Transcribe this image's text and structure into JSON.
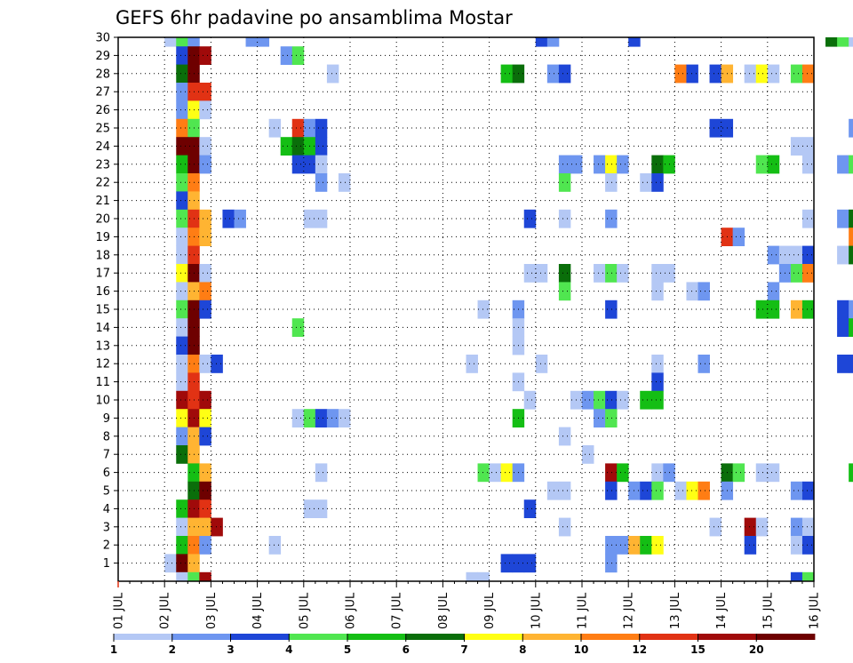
{
  "chart_data": {
    "type": "heatmap",
    "title": "GEFS 6hr padavine po ansamblima Mostar",
    "xlabel": "",
    "ylabel": "",
    "grid": true,
    "legend_position": "bottom",
    "x_tick_labels": [
      "01 JUL",
      "02 JUL",
      "03 JUL",
      "04 JUL",
      "05 JUL",
      "06 JUL",
      "07 JUL",
      "08 JUL",
      "09 JUL",
      "10 JUL",
      "11 JUL",
      "12 JUL",
      "13 JUL",
      "14 JUL",
      "15 JUL",
      "16 JUL"
    ],
    "y_tick_labels": [
      "1",
      "2",
      "3",
      "4",
      "5",
      "6",
      "7",
      "8",
      "9",
      "10",
      "11",
      "12",
      "13",
      "14",
      "15",
      "16",
      "17",
      "18",
      "19",
      "20",
      "21",
      "22",
      "23",
      "24",
      "25",
      "26",
      "27",
      "28",
      "29",
      "30"
    ],
    "time_step_hours": 6,
    "legend": {
      "labels": [
        "1",
        "2",
        "3",
        "4",
        "5",
        "6",
        "7",
        "8",
        "10",
        "12",
        "15",
        "20"
      ],
      "colors": [
        "#b4c8f5",
        "#6e96f0",
        "#1e46d7",
        "#50e650",
        "#14be14",
        "#0a6e0a",
        "#ffff14",
        "#ffb432",
        "#ff7d14",
        "#e13214",
        "#a00a0a",
        "#6e0000"
      ]
    },
    "cells": [
      [
        4,
        30,
        1
      ],
      [
        5,
        30,
        4
      ],
      [
        6,
        30,
        2
      ],
      [
        11,
        30,
        2
      ],
      [
        12,
        30,
        2
      ],
      [
        36,
        30,
        3
      ],
      [
        37,
        30,
        2
      ],
      [
        44,
        30,
        3
      ],
      [
        61,
        30,
        6
      ],
      [
        62,
        30,
        4
      ],
      [
        63,
        30,
        1
      ],
      [
        5,
        29,
        3
      ],
      [
        6,
        29,
        12
      ],
      [
        7,
        29,
        11
      ],
      [
        14,
        29,
        2
      ],
      [
        15,
        29,
        4
      ],
      [
        5,
        28,
        6
      ],
      [
        6,
        28,
        12
      ],
      [
        18,
        28,
        1
      ],
      [
        33,
        28,
        5
      ],
      [
        34,
        28,
        6
      ],
      [
        37,
        28,
        2
      ],
      [
        38,
        28,
        3
      ],
      [
        48,
        28,
        9
      ],
      [
        49,
        28,
        3
      ],
      [
        51,
        28,
        3
      ],
      [
        52,
        28,
        8
      ],
      [
        54,
        28,
        1
      ],
      [
        55,
        28,
        7
      ],
      [
        56,
        28,
        1
      ],
      [
        58,
        28,
        4
      ],
      [
        59,
        28,
        9
      ],
      [
        5,
        27,
        2
      ],
      [
        6,
        27,
        10
      ],
      [
        7,
        27,
        10
      ],
      [
        5,
        26,
        2
      ],
      [
        6,
        26,
        7
      ],
      [
        7,
        26,
        1
      ],
      [
        5,
        25,
        9
      ],
      [
        6,
        25,
        4
      ],
      [
        13,
        25,
        1
      ],
      [
        15,
        25,
        10
      ],
      [
        16,
        25,
        2
      ],
      [
        17,
        25,
        3
      ],
      [
        51,
        25,
        3
      ],
      [
        52,
        25,
        3
      ],
      [
        63,
        25,
        2
      ],
      [
        5,
        24,
        12
      ],
      [
        6,
        24,
        12
      ],
      [
        7,
        24,
        1
      ],
      [
        14,
        24,
        5
      ],
      [
        15,
        24,
        6
      ],
      [
        16,
        24,
        5
      ],
      [
        17,
        24,
        3
      ],
      [
        58,
        24,
        1
      ],
      [
        59,
        24,
        1
      ],
      [
        5,
        23,
        5
      ],
      [
        6,
        23,
        12
      ],
      [
        7,
        23,
        2
      ],
      [
        15,
        23,
        3
      ],
      [
        16,
        23,
        3
      ],
      [
        17,
        23,
        1
      ],
      [
        38,
        23,
        2
      ],
      [
        39,
        23,
        2
      ],
      [
        41,
        23,
        2
      ],
      [
        42,
        23,
        7
      ],
      [
        43,
        23,
        2
      ],
      [
        46,
        23,
        6
      ],
      [
        47,
        23,
        5
      ],
      [
        55,
        23,
        4
      ],
      [
        56,
        23,
        5
      ],
      [
        59,
        23,
        1
      ],
      [
        62,
        23,
        2
      ],
      [
        63,
        23,
        4
      ],
      [
        5,
        22,
        4
      ],
      [
        6,
        22,
        9
      ],
      [
        17,
        22,
        2
      ],
      [
        19,
        22,
        1
      ],
      [
        38,
        22,
        4
      ],
      [
        42,
        22,
        1
      ],
      [
        45,
        22,
        1
      ],
      [
        46,
        22,
        3
      ],
      [
        5,
        21,
        3
      ],
      [
        6,
        21,
        8
      ],
      [
        5,
        20,
        4
      ],
      [
        6,
        20,
        10
      ],
      [
        7,
        20,
        8
      ],
      [
        9,
        20,
        3
      ],
      [
        10,
        20,
        2
      ],
      [
        16,
        20,
        1
      ],
      [
        17,
        20,
        1
      ],
      [
        35,
        20,
        3
      ],
      [
        38,
        20,
        1
      ],
      [
        42,
        20,
        2
      ],
      [
        59,
        20,
        1
      ],
      [
        62,
        20,
        2
      ],
      [
        63,
        20,
        6
      ],
      [
        64,
        20,
        4
      ],
      [
        5,
        19,
        1
      ],
      [
        6,
        19,
        9
      ],
      [
        7,
        19,
        8
      ],
      [
        52,
        19,
        10
      ],
      [
        53,
        19,
        2
      ],
      [
        63,
        19,
        9
      ],
      [
        64,
        19,
        5
      ],
      [
        5,
        18,
        1
      ],
      [
        6,
        18,
        10
      ],
      [
        56,
        18,
        2
      ],
      [
        57,
        18,
        1
      ],
      [
        58,
        18,
        1
      ],
      [
        59,
        18,
        3
      ],
      [
        62,
        18,
        1
      ],
      [
        63,
        18,
        6
      ],
      [
        5,
        17,
        7
      ],
      [
        6,
        17,
        12
      ],
      [
        7,
        17,
        1
      ],
      [
        35,
        17,
        1
      ],
      [
        36,
        17,
        1
      ],
      [
        38,
        17,
        6
      ],
      [
        41,
        17,
        1
      ],
      [
        42,
        17,
        4
      ],
      [
        43,
        17,
        1
      ],
      [
        46,
        17,
        1
      ],
      [
        47,
        17,
        1
      ],
      [
        57,
        17,
        2
      ],
      [
        58,
        17,
        4
      ],
      [
        59,
        17,
        9
      ],
      [
        64,
        17,
        2
      ],
      [
        5,
        16,
        1
      ],
      [
        6,
        16,
        8
      ],
      [
        7,
        16,
        9
      ],
      [
        38,
        16,
        4
      ],
      [
        46,
        16,
        1
      ],
      [
        49,
        16,
        1
      ],
      [
        50,
        16,
        2
      ],
      [
        56,
        16,
        2
      ],
      [
        5,
        15,
        4
      ],
      [
        6,
        15,
        12
      ],
      [
        7,
        15,
        3
      ],
      [
        31,
        15,
        1
      ],
      [
        34,
        15,
        2
      ],
      [
        42,
        15,
        3
      ],
      [
        55,
        15,
        5
      ],
      [
        56,
        15,
        5
      ],
      [
        58,
        15,
        8
      ],
      [
        59,
        15,
        5
      ],
      [
        62,
        15,
        3
      ],
      [
        63,
        15,
        2
      ],
      [
        5,
        14,
        1
      ],
      [
        6,
        14,
        12
      ],
      [
        15,
        14,
        4
      ],
      [
        34,
        14,
        1
      ],
      [
        62,
        14,
        3
      ],
      [
        63,
        14,
        5
      ],
      [
        5,
        13,
        3
      ],
      [
        6,
        13,
        12
      ],
      [
        34,
        13,
        1
      ],
      [
        5,
        12,
        1
      ],
      [
        6,
        12,
        9
      ],
      [
        7,
        12,
        1
      ],
      [
        8,
        12,
        3
      ],
      [
        30,
        12,
        1
      ],
      [
        36,
        12,
        1
      ],
      [
        46,
        12,
        1
      ],
      [
        50,
        12,
        2
      ],
      [
        62,
        12,
        3
      ],
      [
        63,
        12,
        3
      ],
      [
        5,
        11,
        1
      ],
      [
        6,
        11,
        10
      ],
      [
        34,
        11,
        1
      ],
      [
        46,
        11,
        3
      ],
      [
        5,
        10,
        11
      ],
      [
        6,
        10,
        10
      ],
      [
        7,
        10,
        11
      ],
      [
        35,
        10,
        1
      ],
      [
        39,
        10,
        1
      ],
      [
        40,
        10,
        2
      ],
      [
        41,
        10,
        4
      ],
      [
        42,
        10,
        3
      ],
      [
        43,
        10,
        1
      ],
      [
        45,
        10,
        5
      ],
      [
        46,
        10,
        5
      ],
      [
        5,
        9,
        7
      ],
      [
        6,
        9,
        11
      ],
      [
        7,
        9,
        7
      ],
      [
        15,
        9,
        1
      ],
      [
        16,
        9,
        4
      ],
      [
        17,
        9,
        3
      ],
      [
        18,
        9,
        2
      ],
      [
        19,
        9,
        1
      ],
      [
        34,
        9,
        5
      ],
      [
        41,
        9,
        2
      ],
      [
        42,
        9,
        4
      ],
      [
        64,
        9,
        1
      ],
      [
        5,
        8,
        2
      ],
      [
        6,
        8,
        8
      ],
      [
        7,
        8,
        3
      ],
      [
        38,
        8,
        1
      ],
      [
        5,
        7,
        6
      ],
      [
        6,
        7,
        8
      ],
      [
        40,
        7,
        1
      ],
      [
        6,
        6,
        5
      ],
      [
        7,
        6,
        8
      ],
      [
        17,
        6,
        1
      ],
      [
        31,
        6,
        4
      ],
      [
        32,
        6,
        1
      ],
      [
        33,
        6,
        7
      ],
      [
        34,
        6,
        2
      ],
      [
        42,
        6,
        11
      ],
      [
        43,
        6,
        5
      ],
      [
        46,
        6,
        1
      ],
      [
        47,
        6,
        2
      ],
      [
        52,
        6,
        6
      ],
      [
        53,
        6,
        4
      ],
      [
        55,
        6,
        1
      ],
      [
        56,
        6,
        1
      ],
      [
        63,
        6,
        5
      ],
      [
        6,
        5,
        6
      ],
      [
        7,
        5,
        12
      ],
      [
        37,
        5,
        1
      ],
      [
        38,
        5,
        1
      ],
      [
        42,
        5,
        3
      ],
      [
        44,
        5,
        2
      ],
      [
        45,
        5,
        3
      ],
      [
        46,
        5,
        4
      ],
      [
        48,
        5,
        1
      ],
      [
        49,
        5,
        7
      ],
      [
        50,
        5,
        9
      ],
      [
        52,
        5,
        2
      ],
      [
        58,
        5,
        2
      ],
      [
        59,
        5,
        3
      ],
      [
        5,
        4,
        5
      ],
      [
        6,
        4,
        11
      ],
      [
        7,
        4,
        10
      ],
      [
        16,
        4,
        1
      ],
      [
        17,
        4,
        1
      ],
      [
        35,
        4,
        3
      ],
      [
        5,
        3,
        1
      ],
      [
        6,
        3,
        8
      ],
      [
        7,
        3,
        8
      ],
      [
        8,
        3,
        11
      ],
      [
        38,
        3,
        1
      ],
      [
        51,
        3,
        1
      ],
      [
        54,
        3,
        11
      ],
      [
        55,
        3,
        1
      ],
      [
        58,
        3,
        2
      ],
      [
        59,
        3,
        1
      ],
      [
        5,
        2,
        5
      ],
      [
        6,
        2,
        9
      ],
      [
        7,
        2,
        2
      ],
      [
        13,
        2,
        1
      ],
      [
        42,
        2,
        2
      ],
      [
        43,
        2,
        2
      ],
      [
        44,
        2,
        8
      ],
      [
        45,
        2,
        5
      ],
      [
        46,
        2,
        7
      ],
      [
        54,
        2,
        3
      ],
      [
        58,
        2,
        1
      ],
      [
        59,
        2,
        3
      ],
      [
        4,
        1,
        1
      ],
      [
        5,
        1,
        12
      ],
      [
        6,
        1,
        8
      ],
      [
        33,
        1,
        3
      ],
      [
        34,
        1,
        3
      ],
      [
        35,
        1,
        3
      ],
      [
        42,
        1,
        2
      ],
      [
        5,
        0,
        1
      ],
      [
        6,
        0,
        4
      ],
      [
        7,
        0,
        11
      ],
      [
        30,
        0,
        1
      ],
      [
        31,
        0,
        1
      ],
      [
        58,
        0,
        3
      ],
      [
        59,
        0,
        4
      ]
    ]
  }
}
